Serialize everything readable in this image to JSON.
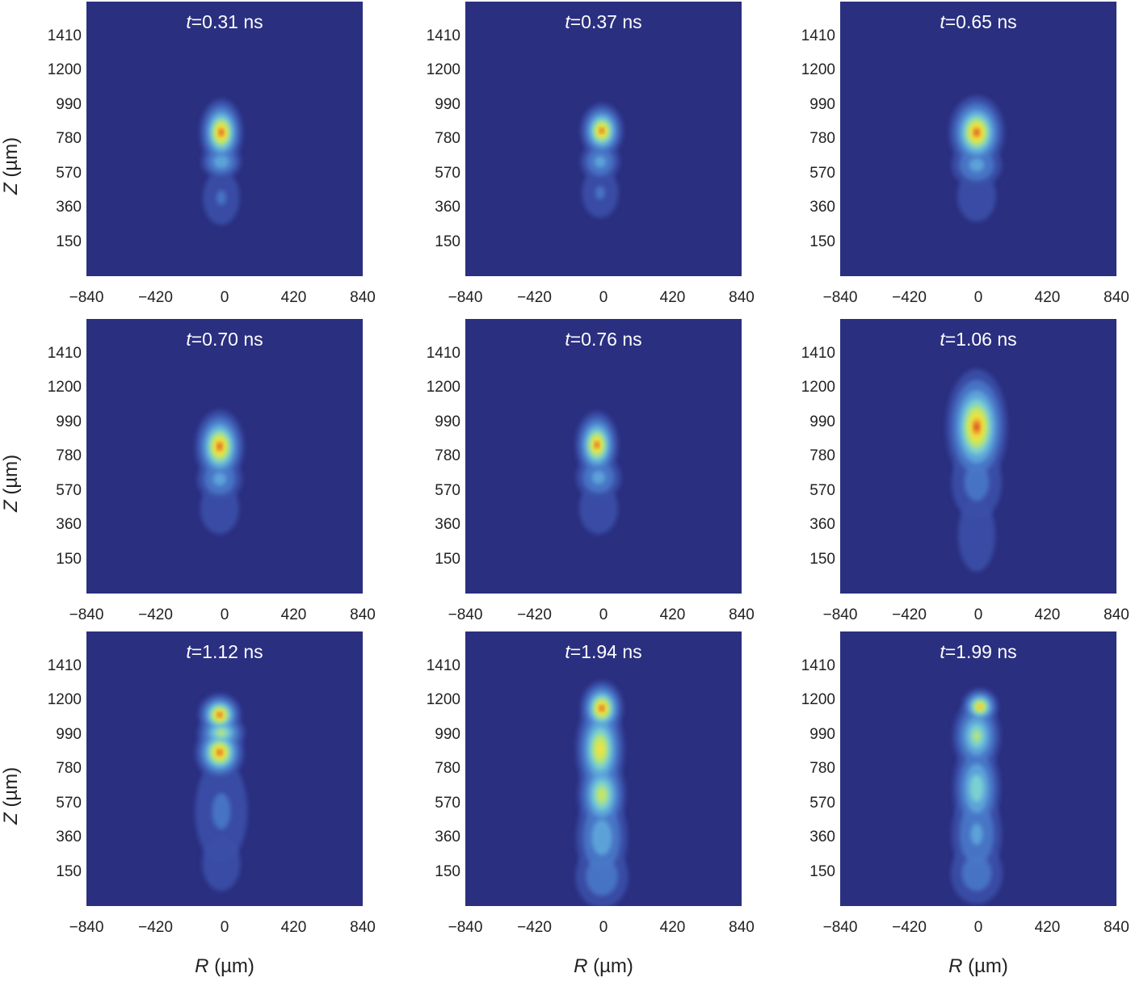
{
  "figure": {
    "x_axis_label": {
      "symbol": "R",
      "unit": " (µm)"
    },
    "y_axis_label": {
      "symbol": "Z",
      "unit": " (µm)"
    }
  },
  "chart_data": [
    {
      "type": "heatmap",
      "title_symbol": "t",
      "title_value": "=0.31 ns",
      "xticks": [
        "−840",
        "−420",
        "0",
        "420",
        "840"
      ],
      "yticks": [
        "1410",
        "1200",
        "990",
        "780",
        "570",
        "360",
        "150"
      ],
      "xlim": [
        -840,
        840
      ],
      "ylim": [
        -60,
        1620
      ],
      "blobs": [
        {
          "r": -20,
          "z": 820,
          "wr": 70,
          "wz": 110,
          "peak": 1.0
        },
        {
          "r": -20,
          "z": 640,
          "wr": 70,
          "wz": 60,
          "peak": 0.45
        },
        {
          "r": -20,
          "z": 420,
          "wr": 80,
          "wz": 120,
          "peak": 0.2
        }
      ]
    },
    {
      "type": "heatmap",
      "title_symbol": "t",
      "title_value": "=0.37 ns",
      "xticks": [
        "−840",
        "−420",
        "0",
        "420",
        "840"
      ],
      "yticks": [
        "1410",
        "1200",
        "990",
        "780",
        "570",
        "360",
        "150"
      ],
      "xlim": [
        -840,
        840
      ],
      "ylim": [
        -60,
        1620
      ],
      "blobs": [
        {
          "r": -10,
          "z": 830,
          "wr": 70,
          "wz": 90,
          "peak": 0.95
        },
        {
          "r": -20,
          "z": 640,
          "wr": 70,
          "wz": 70,
          "peak": 0.4
        },
        {
          "r": -20,
          "z": 450,
          "wr": 80,
          "wz": 110,
          "peak": 0.2
        }
      ]
    },
    {
      "type": "heatmap",
      "title_symbol": "t",
      "title_value": "=0.65 ns",
      "xticks": [
        "−840",
        "−420",
        "0",
        "420",
        "840"
      ],
      "yticks": [
        "1410",
        "1200",
        "990",
        "780",
        "570",
        "360",
        "150"
      ],
      "xlim": [
        -840,
        840
      ],
      "ylim": [
        -60,
        1620
      ],
      "blobs": [
        {
          "r": -10,
          "z": 820,
          "wr": 90,
          "wz": 120,
          "peak": 1.0
        },
        {
          "r": -10,
          "z": 620,
          "wr": 90,
          "wz": 80,
          "peak": 0.4
        },
        {
          "r": -10,
          "z": 430,
          "wr": 90,
          "wz": 120,
          "peak": 0.18
        }
      ]
    },
    {
      "type": "heatmap",
      "title_symbol": "t",
      "title_value": "=0.70 ns",
      "xticks": [
        "−840",
        "−420",
        "0",
        "420",
        "840"
      ],
      "yticks": [
        "1410",
        "1200",
        "990",
        "780",
        "570",
        "360",
        "150"
      ],
      "xlim": [
        -840,
        840
      ],
      "ylim": [
        -60,
        1620
      ],
      "blobs": [
        {
          "r": -30,
          "z": 840,
          "wr": 80,
          "wz": 120,
          "peak": 1.0
        },
        {
          "r": -30,
          "z": 640,
          "wr": 80,
          "wz": 80,
          "peak": 0.4
        },
        {
          "r": -30,
          "z": 460,
          "wr": 90,
          "wz": 120,
          "peak": 0.18
        }
      ]
    },
    {
      "type": "heatmap",
      "title_symbol": "t",
      "title_value": "=0.76 ns",
      "xticks": [
        "−840",
        "−420",
        "0",
        "420",
        "840"
      ],
      "yticks": [
        "1410",
        "1200",
        "990",
        "780",
        "570",
        "360",
        "150"
      ],
      "xlim": [
        -840,
        840
      ],
      "ylim": [
        -60,
        1620
      ],
      "blobs": [
        {
          "r": -40,
          "z": 850,
          "wr": 70,
          "wz": 110,
          "peak": 0.95
        },
        {
          "r": -30,
          "z": 650,
          "wr": 80,
          "wz": 80,
          "peak": 0.4
        },
        {
          "r": -30,
          "z": 460,
          "wr": 90,
          "wz": 120,
          "peak": 0.18
        }
      ]
    },
    {
      "type": "heatmap",
      "title_symbol": "t",
      "title_value": "=1.06 ns",
      "xticks": [
        "−840",
        "−420",
        "0",
        "420",
        "840"
      ],
      "yticks": [
        "1410",
        "1200",
        "990",
        "780",
        "570",
        "360",
        "150"
      ],
      "xlim": [
        -840,
        840
      ],
      "ylim": [
        -60,
        1620
      ],
      "blobs": [
        {
          "r": -10,
          "z": 960,
          "wr": 100,
          "wz": 190,
          "peak": 1.0
        },
        {
          "r": -10,
          "z": 620,
          "wr": 100,
          "wz": 150,
          "peak": 0.25
        },
        {
          "r": -10,
          "z": 300,
          "wr": 100,
          "wz": 200,
          "peak": 0.15
        }
      ]
    },
    {
      "type": "heatmap",
      "title_symbol": "t",
      "title_value": "=1.12 ns",
      "xticks": [
        "−840",
        "−420",
        "0",
        "420",
        "840"
      ],
      "yticks": [
        "1410",
        "1200",
        "990",
        "780",
        "570",
        "360",
        "150"
      ],
      "xlim": [
        -840,
        840
      ],
      "ylim": [
        -60,
        1620
      ],
      "blobs": [
        {
          "r": -30,
          "z": 1110,
          "wr": 70,
          "wz": 70,
          "peak": 1.0
        },
        {
          "r": -30,
          "z": 880,
          "wr": 80,
          "wz": 90,
          "peak": 1.0
        },
        {
          "r": -20,
          "z": 1000,
          "wr": 80,
          "wz": 60,
          "peak": 0.7
        },
        {
          "r": -20,
          "z": 520,
          "wr": 110,
          "wz": 220,
          "peak": 0.22
        },
        {
          "r": -20,
          "z": 200,
          "wr": 110,
          "wz": 160,
          "peak": 0.14
        }
      ]
    },
    {
      "type": "heatmap",
      "title_symbol": "t",
      "title_value": "=1.94 ns",
      "xticks": [
        "−840",
        "−420",
        "0",
        "420",
        "840"
      ],
      "yticks": [
        "1410",
        "1200",
        "990",
        "780",
        "570",
        "360",
        "150"
      ],
      "xlim": [
        -840,
        840
      ],
      "ylim": [
        -60,
        1620
      ],
      "blobs": [
        {
          "r": -10,
          "z": 1150,
          "wr": 70,
          "wz": 90,
          "peak": 1.0
        },
        {
          "r": -20,
          "z": 900,
          "wr": 80,
          "wz": 160,
          "peak": 0.85
        },
        {
          "r": -10,
          "z": 620,
          "wr": 80,
          "wz": 130,
          "peak": 0.75
        },
        {
          "r": -10,
          "z": 360,
          "wr": 90,
          "wz": 160,
          "peak": 0.45
        },
        {
          "r": -10,
          "z": 120,
          "wr": 100,
          "wz": 120,
          "peak": 0.3
        }
      ]
    },
    {
      "type": "heatmap",
      "title_symbol": "t",
      "title_value": "=1.99 ns",
      "xticks": [
        "−840",
        "−420",
        "0",
        "420",
        "840"
      ],
      "yticks": [
        "1410",
        "1200",
        "990",
        "780",
        "570",
        "360",
        "150"
      ],
      "xlim": [
        -840,
        840
      ],
      "ylim": [
        -60,
        1620
      ],
      "blobs": [
        {
          "r": 10,
          "z": 1160,
          "wr": 60,
          "wz": 60,
          "peak": 0.9
        },
        {
          "r": -10,
          "z": 980,
          "wr": 80,
          "wz": 120,
          "peak": 0.65
        },
        {
          "r": -10,
          "z": 660,
          "wr": 80,
          "wz": 160,
          "peak": 0.6
        },
        {
          "r": -10,
          "z": 380,
          "wr": 90,
          "wz": 160,
          "peak": 0.38
        },
        {
          "r": -10,
          "z": 140,
          "wr": 100,
          "wz": 120,
          "peak": 0.28
        }
      ]
    }
  ]
}
